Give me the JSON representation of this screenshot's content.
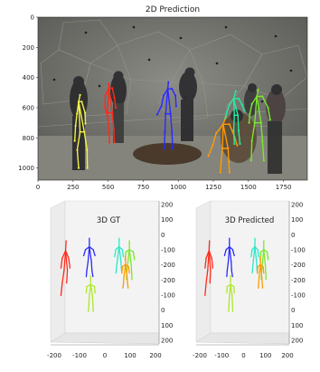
{
  "top_panel": {
    "title": "2D Prediction",
    "x_ticks": [
      "0",
      "250",
      "500",
      "750",
      "1000",
      "1250",
      "1500",
      "1750"
    ],
    "y_ticks": [
      "0",
      "200",
      "400",
      "600",
      "800",
      "1000"
    ],
    "image_description_colors": {
      "dome": "#6f6f6b",
      "floor": "#8a8a82",
      "table": "#4a3a2c"
    }
  },
  "panel_3d_gt": {
    "title": "3D GT",
    "x_ticks": [
      "-200",
      "-100",
      "0",
      "100",
      "200"
    ],
    "right_ticks": [
      "200",
      "100",
      "0",
      "-100",
      "-200",
      "-200",
      "-100",
      "0",
      "100",
      "200"
    ]
  },
  "panel_3d_pred": {
    "title": "3D Predicted",
    "x_ticks": [
      "-200",
      "-100",
      "0",
      "100",
      "200"
    ],
    "right_ticks": [
      "200",
      "100",
      "0",
      "-100",
      "-200",
      "-200",
      "-100",
      "0",
      "100",
      "200"
    ]
  },
  "chart_data": [
    {
      "type": "scatter",
      "title": "2D Prediction",
      "xlim": [
        0,
        1920
      ],
      "ylim": [
        1080,
        0
      ],
      "series": [
        {
          "color": "#f2f24a",
          "joints": [
            [
              300,
              515
            ],
            [
              290,
              560
            ],
            [
              278,
              640
            ],
            [
              268,
              720
            ],
            [
              262,
              820
            ],
            [
              312,
              560
            ],
            [
              336,
              635
            ],
            [
              338,
              705
            ],
            [
              300,
              760
            ],
            [
              280,
              880
            ],
            [
              290,
              1000
            ],
            [
              330,
              760
            ],
            [
              350,
              880
            ],
            [
              352,
              1000
            ]
          ]
        },
        {
          "color": "#ff2a1a",
          "joints": [
            [
              505,
              440
            ],
            [
              505,
              470
            ],
            [
              480,
              520
            ],
            [
              478,
              600
            ],
            [
              494,
              650
            ],
            [
              530,
              470
            ],
            [
              545,
              535
            ],
            [
              555,
              600
            ],
            [
              495,
              635
            ],
            [
              505,
              740
            ],
            [
              510,
              830
            ],
            [
              530,
              635
            ],
            [
              540,
              740
            ],
            [
              545,
              830
            ]
          ]
        },
        {
          "color": "#2a2aff",
          "joints": [
            [
              930,
              430
            ],
            [
              925,
              475
            ],
            [
              895,
              520
            ],
            [
              880,
              590
            ],
            [
              850,
              645
            ],
            [
              955,
              475
            ],
            [
              980,
              520
            ],
            [
              985,
              590
            ],
            [
              910,
              640
            ],
            [
              905,
              760
            ],
            [
              900,
              870
            ],
            [
              945,
              640
            ],
            [
              955,
              760
            ],
            [
              960,
              870
            ]
          ]
        },
        {
          "color": "#ff9a00",
          "joints": [
            [
              1340,
              660
            ],
            [
              1320,
              710
            ],
            [
              1270,
              770
            ],
            [
              1245,
              850
            ],
            [
              1215,
              920
            ],
            [
              1365,
              710
            ],
            [
              1400,
              790
            ],
            [
              1420,
              850
            ],
            [
              1315,
              870
            ],
            [
              1305,
              960
            ],
            [
              1300,
              1030
            ],
            [
              1355,
              870
            ],
            [
              1360,
              960
            ],
            [
              1365,
              1030
            ]
          ]
        },
        {
          "color": "#2ae89a",
          "joints": [
            [
              1410,
              490
            ],
            [
              1395,
              540
            ],
            [
              1365,
              580
            ],
            [
              1345,
              630
            ],
            [
              1335,
              670
            ],
            [
              1430,
              540
            ],
            [
              1455,
              580
            ],
            [
              1470,
              620
            ],
            [
              1400,
              650
            ],
            [
              1395,
              750
            ],
            [
              1400,
              840
            ],
            [
              1425,
              650
            ],
            [
              1430,
              750
            ],
            [
              1440,
              840
            ]
          ]
        },
        {
          "color": "#7ae82a",
          "joints": [
            [
              1570,
              480
            ],
            [
              1560,
              525
            ],
            [
              1525,
              575
            ],
            [
              1510,
              640
            ],
            [
              1505,
              700
            ],
            [
              1600,
              525
            ],
            [
              1640,
              600
            ],
            [
              1655,
              680
            ],
            [
              1545,
              700
            ],
            [
              1525,
              820
            ],
            [
              1520,
              950
            ],
            [
              1590,
              700
            ],
            [
              1600,
              820
            ],
            [
              1610,
              950
            ]
          ]
        }
      ]
    },
    {
      "type": "scatter",
      "title": "3D GT",
      "series": [
        {
          "color": "#ff2a1a",
          "joints": [
            [
              -150,
              40
            ],
            [
              -152,
              60
            ],
            [
              -165,
              75
            ],
            [
              -170,
              95
            ],
            [
              -140,
              75
            ],
            [
              -135,
              95
            ],
            [
              -158,
              100
            ],
            [
              -165,
              125
            ],
            [
              -170,
              150
            ],
            [
              -145,
              100
            ],
            [
              -148,
              125
            ]
          ]
        },
        {
          "color": "#2a2aff",
          "joints": [
            [
              -60,
              35
            ],
            [
              -60,
              52
            ],
            [
              -75,
              58
            ],
            [
              -82,
              70
            ],
            [
              -45,
              58
            ],
            [
              -38,
              70
            ],
            [
              -65,
              82
            ],
            [
              -70,
              100
            ],
            [
              -72,
              112
            ],
            [
              -52,
              82
            ],
            [
              -50,
              100
            ],
            [
              -46,
              112
            ]
          ]
        },
        {
          "color": "#aee82a",
          "joints": [
            [
              -55,
              110
            ],
            [
              -55,
              128
            ],
            [
              -70,
              132
            ],
            [
              -72,
              145
            ],
            [
              -40,
              132
            ],
            [
              -38,
              145
            ],
            [
              -60,
              150
            ],
            [
              -62,
              168
            ],
            [
              -64,
              182
            ],
            [
              -48,
              150
            ],
            [
              -46,
              168
            ],
            [
              -45,
              182
            ]
          ]
        },
        {
          "color": "#2ae8c8",
          "joints": [
            [
              55,
              35
            ],
            [
              55,
              52
            ],
            [
              42,
              58
            ],
            [
              38,
              72
            ],
            [
              68,
              58
            ],
            [
              72,
              72
            ],
            [
              48,
              80
            ],
            [
              45,
              95
            ],
            [
              43,
              105
            ],
            [
              62,
              80
            ],
            [
              64,
              95
            ],
            [
              66,
              105
            ]
          ]
        },
        {
          "color": "#7ae82a",
          "joints": [
            [
              95,
              40
            ],
            [
              95,
              58
            ],
            [
              82,
              62
            ],
            [
              78,
              78
            ],
            [
              110,
              62
            ],
            [
              115,
              78
            ],
            [
              88,
              88
            ],
            [
              85,
              105
            ],
            [
              84,
              118
            ],
            [
              102,
              88
            ],
            [
              104,
              105
            ],
            [
              105,
              118
            ]
          ]
        },
        {
          "color": "#ff9a00",
          "joints": [
            [
              80,
              72
            ],
            [
              80,
              88
            ],
            [
              68,
              92
            ],
            [
              66,
              105
            ],
            [
              92,
              92
            ],
            [
              95,
              105
            ],
            [
              74,
              112
            ],
            [
              72,
              126
            ],
            [
              70,
              135
            ],
            [
              86,
              112
            ],
            [
              88,
              126
            ],
            [
              90,
              135
            ]
          ]
        }
      ]
    },
    {
      "type": "scatter",
      "title": "3D Predicted",
      "series": [
        {
          "color": "#ff2a1a",
          "joints": [
            [
              -150,
              40
            ],
            [
              -152,
              60
            ],
            [
              -165,
              75
            ],
            [
              -170,
              95
            ],
            [
              -140,
              75
            ],
            [
              -135,
              95
            ],
            [
              -158,
              100
            ],
            [
              -165,
              125
            ],
            [
              -170,
              150
            ],
            [
              -145,
              100
            ],
            [
              -148,
              125
            ]
          ]
        },
        {
          "color": "#2a2aff",
          "joints": [
            [
              -60,
              35
            ],
            [
              -60,
              52
            ],
            [
              -75,
              58
            ],
            [
              -82,
              70
            ],
            [
              -45,
              58
            ],
            [
              -38,
              70
            ],
            [
              -65,
              82
            ],
            [
              -70,
              100
            ],
            [
              -72,
              112
            ],
            [
              -52,
              82
            ],
            [
              -50,
              100
            ],
            [
              -46,
              112
            ]
          ]
        },
        {
          "color": "#aee82a",
          "joints": [
            [
              -55,
              110
            ],
            [
              -55,
              128
            ],
            [
              -70,
              132
            ],
            [
              -72,
              145
            ],
            [
              -40,
              132
            ],
            [
              -38,
              145
            ],
            [
              -60,
              150
            ],
            [
              -62,
              168
            ],
            [
              -64,
              182
            ],
            [
              -48,
              150
            ],
            [
              -46,
              168
            ],
            [
              -45,
              182
            ]
          ]
        },
        {
          "color": "#2ae8c8",
          "joints": [
            [
              55,
              35
            ],
            [
              55,
              52
            ],
            [
              42,
              58
            ],
            [
              38,
              72
            ],
            [
              68,
              58
            ],
            [
              72,
              72
            ],
            [
              48,
              80
            ],
            [
              45,
              95
            ],
            [
              43,
              105
            ],
            [
              62,
              80
            ],
            [
              64,
              95
            ],
            [
              66,
              105
            ]
          ]
        },
        {
          "color": "#7ae82a",
          "joints": [
            [
              95,
              40
            ],
            [
              95,
              58
            ],
            [
              82,
              62
            ],
            [
              78,
              78
            ],
            [
              110,
              62
            ],
            [
              115,
              78
            ],
            [
              88,
              88
            ],
            [
              85,
              105
            ],
            [
              84,
              118
            ],
            [
              102,
              88
            ],
            [
              104,
              105
            ],
            [
              105,
              118
            ]
          ]
        },
        {
          "color": "#ff9a00",
          "joints": [
            [
              80,
              72
            ],
            [
              80,
              88
            ],
            [
              68,
              92
            ],
            [
              66,
              105
            ],
            [
              92,
              92
            ],
            [
              95,
              105
            ],
            [
              74,
              112
            ],
            [
              72,
              126
            ],
            [
              70,
              135
            ],
            [
              86,
              112
            ],
            [
              88,
              126
            ],
            [
              90,
              135
            ]
          ]
        }
      ]
    }
  ]
}
